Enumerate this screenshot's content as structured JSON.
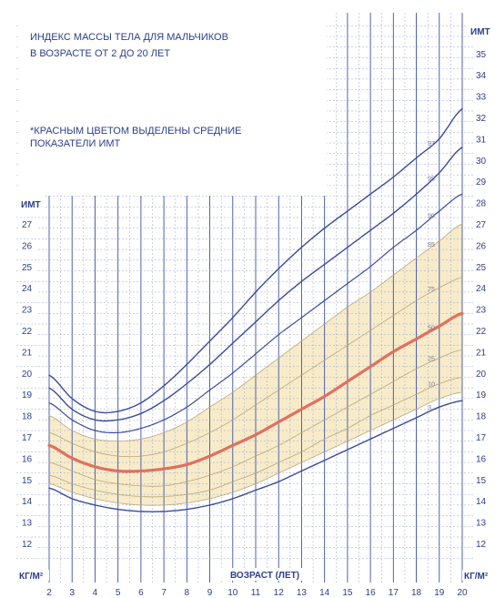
{
  "chart_data": {
    "type": "line",
    "title_lines": [
      "ИНДЕКС МАССЫ ТЕЛА ДЛЯ МАЛЬЧИКОВ",
      "В ВОЗРАСТЕ ОТ 2 ДО 20 ЛЕТ"
    ],
    "note_lines": [
      "*КРАСНЫМ ЦВЕТОМ ВЫДЕЛЕНЫ СРЕДНИЕ",
      "ПОКАЗАТЕЛИ ИМТ"
    ],
    "xlabel": "ВОЗРАСТ (ЛЕТ)",
    "ylabel_left": "ИМТ",
    "ylabel_right": "ИМТ",
    "unit_left": "КГ/М²",
    "unit_right": "КГ/М²",
    "xlim": [
      2,
      20
    ],
    "ylim_left": [
      11.3,
      28.0
    ],
    "ylim_right": [
      11.3,
      36.6
    ],
    "x_ticks": [
      "2",
      "3",
      "4",
      "5",
      "6",
      "7",
      "8",
      "9",
      "10",
      "11",
      "12",
      "13",
      "14",
      "15",
      "16",
      "17",
      "18",
      "19",
      "20"
    ],
    "y_ticks_left": [
      "12",
      "13",
      "14",
      "15",
      "16",
      "17",
      "18",
      "19",
      "20",
      "21",
      "22",
      "23",
      "24",
      "25",
      "26",
      "27"
    ],
    "y_ticks_right": [
      "12",
      "13",
      "14",
      "15",
      "16",
      "17",
      "18",
      "19",
      "20",
      "21",
      "22",
      "23",
      "24",
      "25",
      "26",
      "27",
      "28",
      "29",
      "30",
      "31",
      "32",
      "33",
      "34",
      "35"
    ],
    "x": [
      2,
      3,
      4,
      5,
      6,
      7,
      8,
      9,
      10,
      11,
      12,
      13,
      14,
      15,
      16,
      17,
      18,
      19,
      20
    ],
    "band": {
      "name": "",
      "lower_series": "5",
      "upper_series": "85",
      "color": "#f6e8bf"
    },
    "series": [
      {
        "name": "3",
        "label": "3",
        "color": "#3a4a9a",
        "width": 1.4,
        "values": [
          14.6,
          14.1,
          13.8,
          13.6,
          13.5,
          13.5,
          13.6,
          13.8,
          14.1,
          14.5,
          14.9,
          15.4,
          15.9,
          16.4,
          16.9,
          17.4,
          17.9,
          18.4,
          18.7
        ]
      },
      {
        "name": "5",
        "label": "",
        "color": "#b8a878",
        "width": 0.8,
        "values": [
          14.8,
          14.4,
          14.1,
          13.9,
          13.8,
          13.8,
          13.9,
          14.1,
          14.4,
          14.8,
          15.3,
          15.8,
          16.3,
          16.8,
          17.3,
          17.8,
          18.3,
          18.8,
          19.1
        ]
      },
      {
        "name": "10",
        "label": "10",
        "color": "#b8a878",
        "width": 0.8,
        "values": [
          15.2,
          14.8,
          14.5,
          14.3,
          14.2,
          14.2,
          14.3,
          14.5,
          14.9,
          15.3,
          15.8,
          16.3,
          16.9,
          17.4,
          18.0,
          18.5,
          19.0,
          19.5,
          19.8
        ]
      },
      {
        "name": "25",
        "label": "25",
        "color": "#b8a878",
        "width": 0.8,
        "values": [
          15.8,
          15.4,
          15.0,
          14.8,
          14.7,
          14.7,
          14.9,
          15.2,
          15.6,
          16.1,
          16.6,
          17.2,
          17.8,
          18.4,
          19.0,
          19.6,
          20.2,
          20.7,
          21.1
        ]
      },
      {
        "name": "50",
        "label": "50",
        "color": "#e07060",
        "width": 3.2,
        "values": [
          16.6,
          16.0,
          15.6,
          15.4,
          15.4,
          15.5,
          15.7,
          16.1,
          16.6,
          17.1,
          17.7,
          18.3,
          18.9,
          19.6,
          20.3,
          21.0,
          21.6,
          22.2,
          22.8
        ]
      },
      {
        "name": "75",
        "label": "75",
        "color": "#b8a878",
        "width": 0.8,
        "values": [
          17.2,
          16.7,
          16.3,
          16.1,
          16.1,
          16.3,
          16.7,
          17.2,
          17.8,
          18.5,
          19.2,
          19.9,
          20.6,
          21.3,
          22.0,
          22.7,
          23.4,
          24.0,
          24.5
        ]
      },
      {
        "name": "85",
        "label": "85",
        "color": "#b8a878",
        "width": 0.8,
        "values": [
          18.0,
          17.3,
          16.9,
          16.8,
          16.9,
          17.2,
          17.7,
          18.4,
          19.1,
          19.9,
          20.7,
          21.5,
          22.3,
          23.1,
          23.8,
          24.6,
          25.4,
          26.2,
          27.0
        ]
      },
      {
        "name": "90",
        "label": "90",
        "color": "#3a4a9a",
        "width": 1.2,
        "values": [
          18.6,
          17.8,
          17.3,
          17.2,
          17.4,
          17.8,
          18.4,
          19.2,
          20.0,
          20.9,
          21.8,
          22.6,
          23.4,
          24.2,
          25.0,
          25.9,
          26.7,
          27.6,
          28.4
        ]
      },
      {
        "name": "95",
        "label": "95",
        "color": "#3a4a9a",
        "width": 1.4,
        "values": [
          19.3,
          18.3,
          17.8,
          17.8,
          18.1,
          18.7,
          19.5,
          20.4,
          21.4,
          22.4,
          23.4,
          24.3,
          25.1,
          25.9,
          26.7,
          27.5,
          28.4,
          29.4,
          30.6
        ]
      },
      {
        "name": "97",
        "label": "97",
        "color": "#3a4a9a",
        "width": 1.4,
        "values": [
          19.9,
          18.8,
          18.2,
          18.2,
          18.6,
          19.4,
          20.4,
          21.5,
          22.6,
          23.8,
          24.9,
          25.9,
          26.8,
          27.6,
          28.4,
          29.2,
          30.1,
          31.0,
          32.4
        ]
      }
    ],
    "grid": true,
    "colors": {
      "grid_major": "#3d52a8",
      "grid_minor": "#9aa6d6",
      "text": "#2b3e8c",
      "background": "#ffffff",
      "band": "#f6e8bf",
      "median": "#e07060"
    }
  }
}
